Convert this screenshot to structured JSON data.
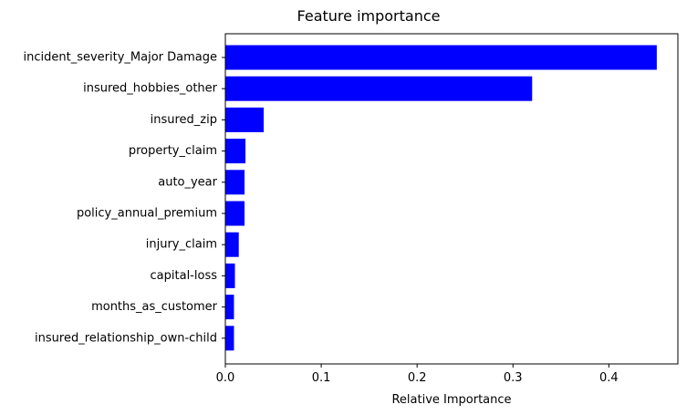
{
  "chart_data": {
    "type": "bar",
    "orientation": "horizontal",
    "title": "Feature importance",
    "xlabel": "Relative Importance",
    "ylabel": "",
    "categories": [
      "incident_severity_Major Damage",
      "insured_hobbies_other",
      "insured_zip",
      "property_claim",
      "auto_year",
      "policy_annual_premium",
      "injury_claim",
      "capital-loss",
      "months_as_customer",
      "insured_relationship_own-child"
    ],
    "values": [
      0.45,
      0.32,
      0.04,
      0.021,
      0.02,
      0.02,
      0.014,
      0.01,
      0.009,
      0.009
    ],
    "xlim": [
      0,
      0.472
    ],
    "xticks": [
      0.0,
      0.1,
      0.2,
      0.3,
      0.4
    ],
    "xtick_labels": [
      "0.0",
      "0.1",
      "0.2",
      "0.3",
      "0.4"
    ],
    "bar_color": "#0000ff",
    "grid": false,
    "legend": false
  }
}
